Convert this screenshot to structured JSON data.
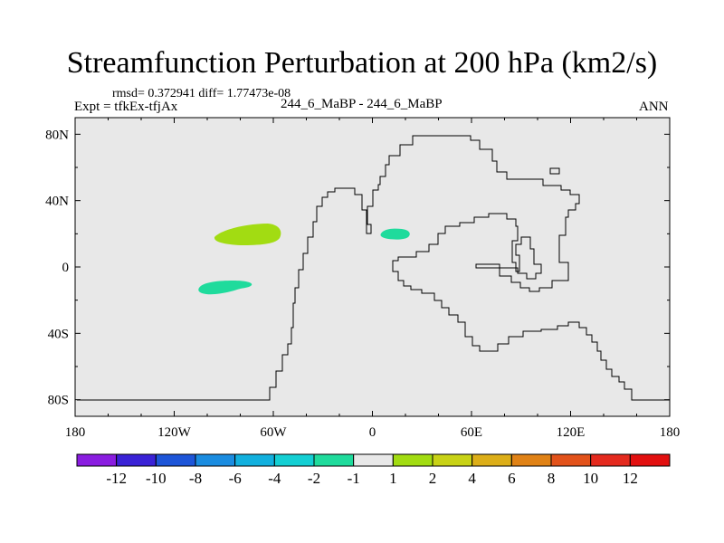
{
  "chart_data": {
    "type": "heatmap",
    "title": "Streamfunction Perturbation at 200 hPa (km2/s)",
    "stats_line": "rmsd= 0.372941 diff= 1.77473e-08",
    "left_label": "Expt = tfkEx-tfjAx",
    "center_label": "244_6_MaBP - 244_6_MaBP",
    "right_label": "ANN",
    "x_ticks": [
      "180",
      "120W",
      "60W",
      "0",
      "60E",
      "120E",
      "180"
    ],
    "x_tick_values": [
      -180,
      -120,
      -60,
      0,
      60,
      120,
      180
    ],
    "y_ticks": [
      "80N",
      "40N",
      "0",
      "40S",
      "80S"
    ],
    "y_tick_values": [
      80,
      40,
      0,
      -40,
      -80
    ],
    "xlim": [
      -180,
      180
    ],
    "ylim": [
      -90,
      90
    ],
    "background_color": "#e8e8e8",
    "colorbar": {
      "labels": [
        "-12",
        "-10",
        "-8",
        "-6",
        "-4",
        "-2",
        "-1",
        "1",
        "2",
        "4",
        "6",
        "8",
        "10",
        "12"
      ],
      "colors": [
        "#8a1de0",
        "#3a22d6",
        "#1d55d8",
        "#1a8ce0",
        "#12b0de",
        "#14cfd3",
        "#1fdb9c",
        "#e8e8e8",
        "#a2dc12",
        "#c8d216",
        "#dcae18",
        "#e08216",
        "#e2521a",
        "#e42a1e",
        "#e21010"
      ]
    },
    "features": [
      {
        "name": "positive anomaly west Pacific",
        "value_range": "1 to 2",
        "color": "#a2dc12",
        "center": [
          -75,
          19
        ]
      },
      {
        "name": "negative anomaly southeast Pacific",
        "value_range": "-2 to -1",
        "color": "#1fdb9c",
        "center": [
          -83,
          -12
        ]
      },
      {
        "name": "negative anomaly north Atlantic",
        "value_range": "-2 to -1",
        "color": "#1fdb9c",
        "center": [
          15,
          19
        ]
      }
    ]
  }
}
